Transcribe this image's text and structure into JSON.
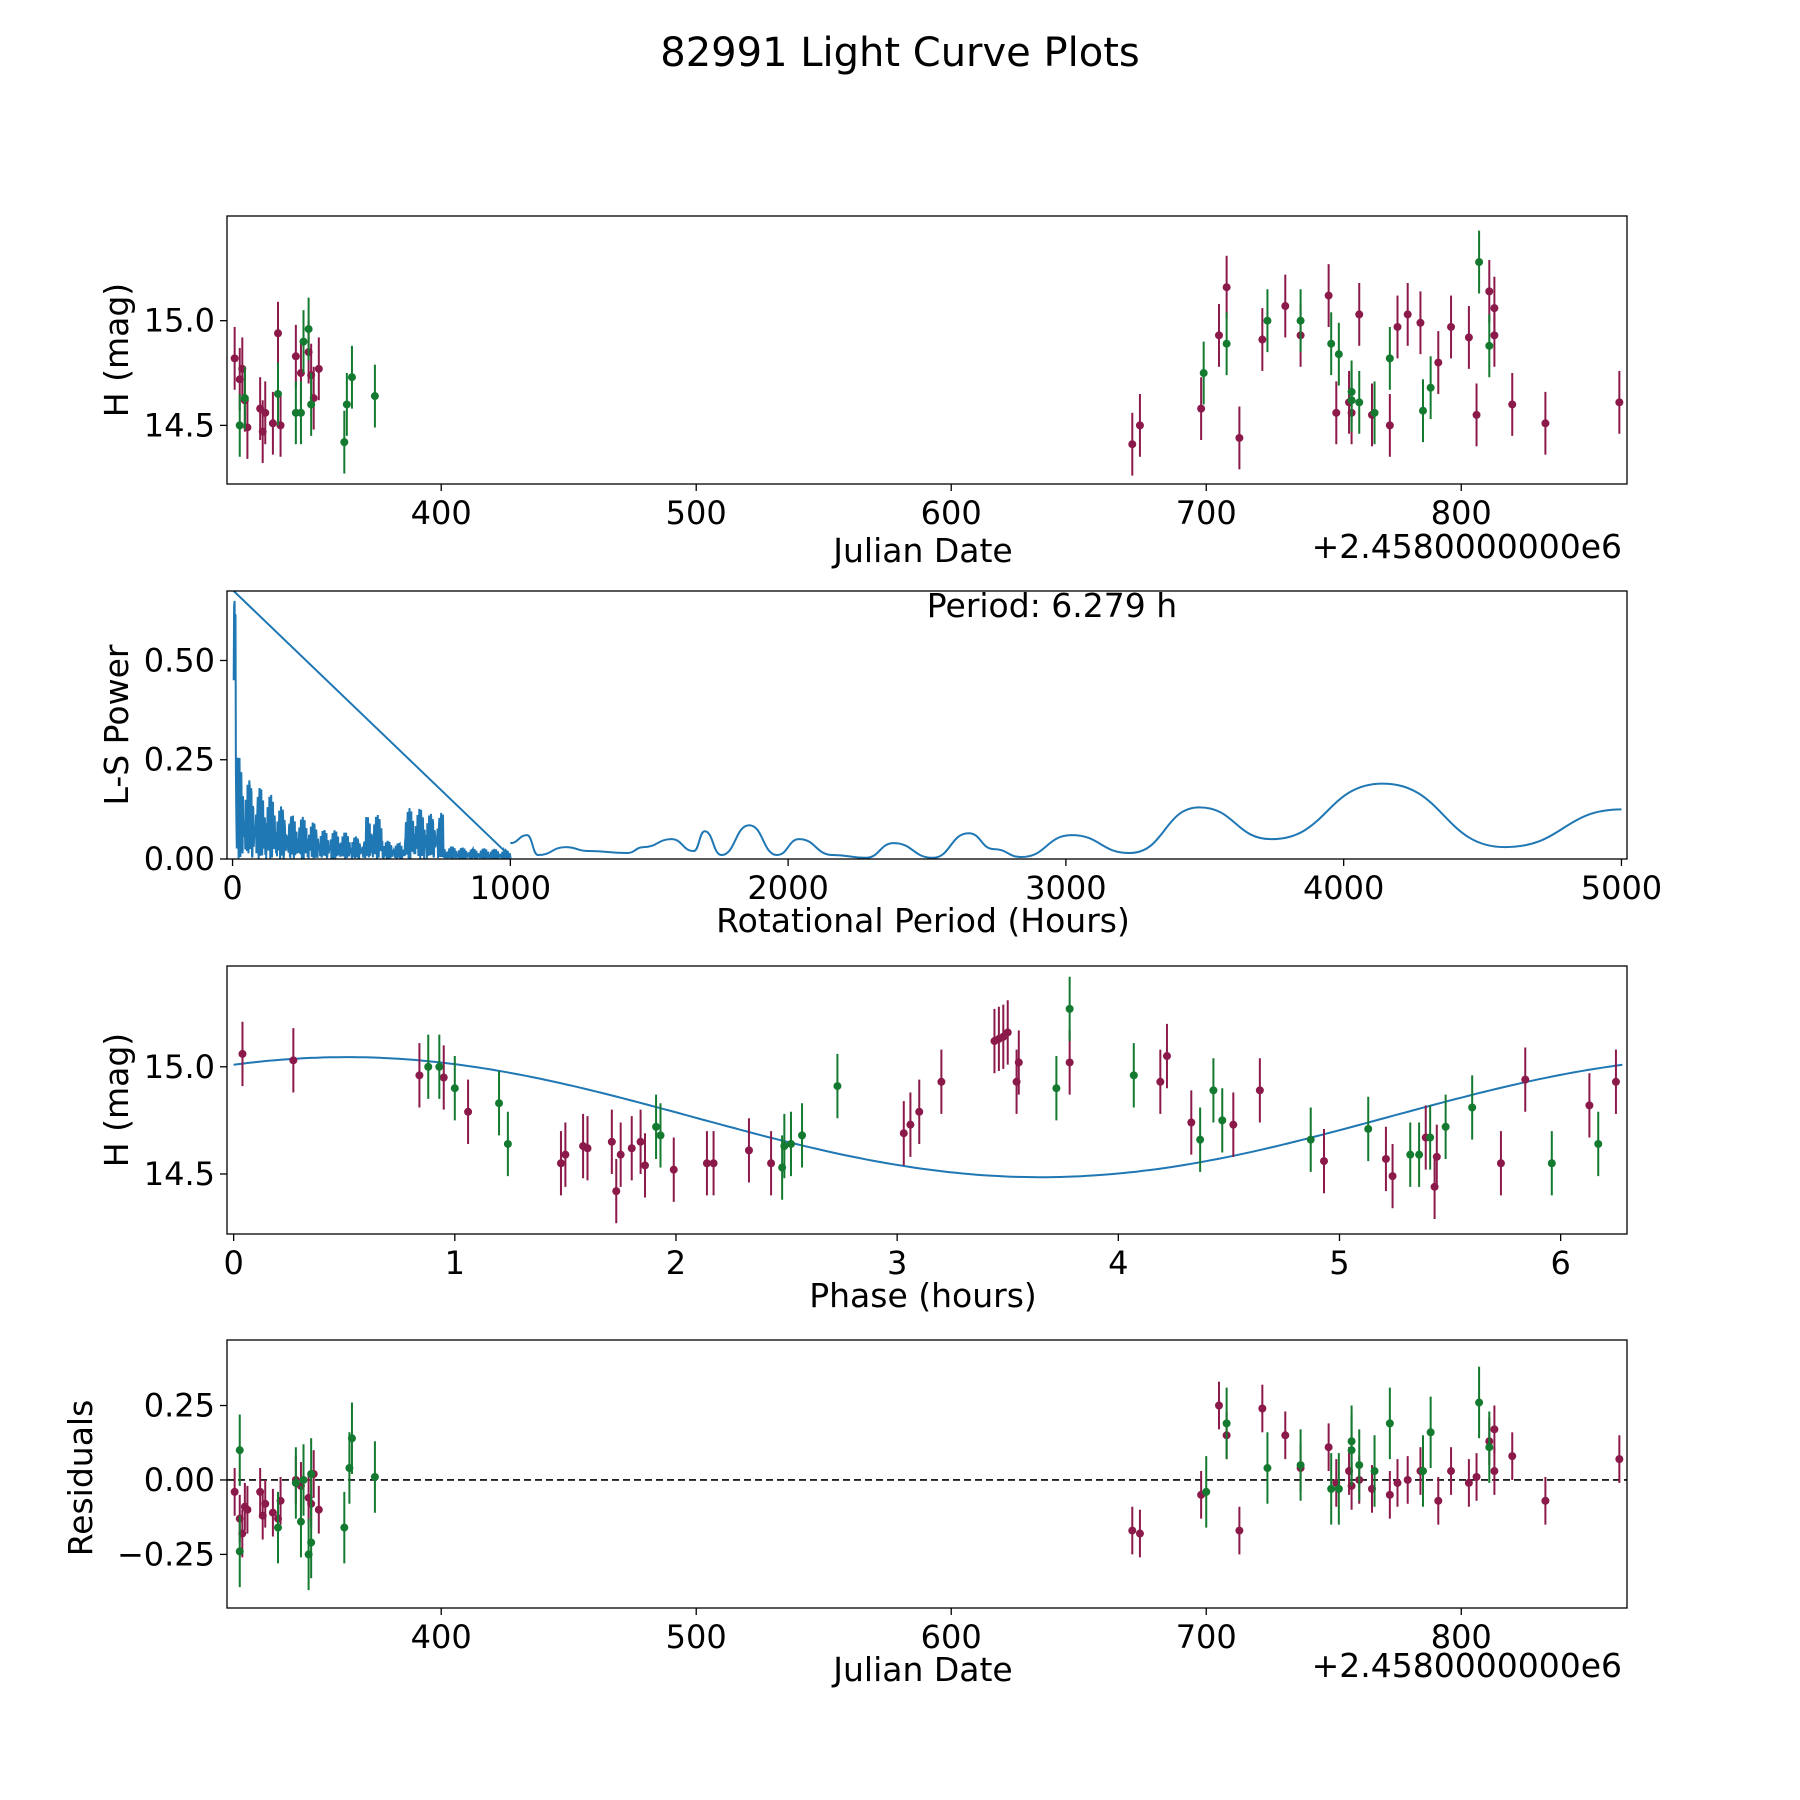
{
  "title": "82991 Light Curve Plots",
  "colors": {
    "red_filter": "#8b1a4b",
    "green_filter": "#137a2f",
    "curve": "#1f77b4",
    "zero_line": "#000000"
  },
  "chart_data": [
    {
      "id": "light_curve",
      "type": "scatter",
      "title": "",
      "xlabel": "Julian Date",
      "ylabel": "H (mag)",
      "x_offset_label": "+2.4580000000e6",
      "xlim": [
        316,
        865
      ],
      "ylim": [
        14.22,
        15.5
      ],
      "y_inverted": false,
      "xticks": [
        400,
        500,
        600,
        700,
        800
      ],
      "xtick_labels": [
        "400",
        "500",
        "600",
        "700",
        "800"
      ],
      "yticks": [
        14.5,
        15.0
      ],
      "ytick_labels": [
        "14.5",
        "15.0"
      ],
      "series": [
        {
          "name": "magenta",
          "color": "#8b1a4b",
          "error": 0.15,
          "points": [
            [
              319,
              14.82
            ],
            [
              321,
              14.72
            ],
            [
              322,
              14.77
            ],
            [
              323,
              14.62
            ],
            [
              324,
              14.49
            ],
            [
              329,
              14.58
            ],
            [
              330,
              14.47
            ],
            [
              331,
              14.56
            ],
            [
              334,
              14.51
            ],
            [
              336,
              14.94
            ],
            [
              337,
              14.5
            ],
            [
              343,
              14.83
            ],
            [
              345,
              14.75
            ],
            [
              348,
              14.85
            ],
            [
              349,
              14.74
            ],
            [
              350,
              14.63
            ],
            [
              352,
              14.77
            ],
            [
              671,
              14.41
            ],
            [
              674,
              14.5
            ],
            [
              698,
              14.58
            ],
            [
              705,
              14.93
            ],
            [
              708,
              15.16
            ],
            [
              713,
              14.44
            ],
            [
              722,
              14.91
            ],
            [
              731,
              15.07
            ],
            [
              737,
              14.93
            ],
            [
              748,
              15.12
            ],
            [
              751,
              14.56
            ],
            [
              756,
              14.61
            ],
            [
              757,
              14.56
            ],
            [
              760,
              15.03
            ],
            [
              765,
              14.55
            ],
            [
              772,
              14.5
            ],
            [
              775,
              14.97
            ],
            [
              779,
              15.03
            ],
            [
              784,
              14.99
            ],
            [
              791,
              14.8
            ],
            [
              796,
              14.97
            ],
            [
              803,
              14.92
            ],
            [
              806,
              14.55
            ],
            [
              811,
              15.14
            ],
            [
              813,
              15.06
            ],
            [
              813,
              14.93
            ],
            [
              820,
              14.6
            ],
            [
              833,
              14.51
            ],
            [
              862,
              14.61
            ]
          ]
        },
        {
          "name": "green",
          "color": "#137a2f",
          "error": 0.15,
          "points": [
            [
              321,
              14.5
            ],
            [
              323,
              14.63
            ],
            [
              336,
              14.65
            ],
            [
              343,
              14.56
            ],
            [
              345,
              14.56
            ],
            [
              346,
              14.9
            ],
            [
              348,
              14.96
            ],
            [
              349,
              14.6
            ],
            [
              362,
              14.42
            ],
            [
              363,
              14.6
            ],
            [
              365,
              14.73
            ],
            [
              374,
              14.64
            ],
            [
              699,
              14.75
            ],
            [
              708,
              14.89
            ],
            [
              724,
              15.0
            ],
            [
              737,
              15.0
            ],
            [
              749,
              14.89
            ],
            [
              752,
              14.84
            ],
            [
              757,
              14.66
            ],
            [
              757,
              14.62
            ],
            [
              760,
              14.61
            ],
            [
              766,
              14.56
            ],
            [
              772,
              14.82
            ],
            [
              785,
              14.57
            ],
            [
              788,
              14.68
            ],
            [
              807,
              15.28
            ],
            [
              811,
              14.88
            ]
          ]
        }
      ]
    },
    {
      "id": "periodogram",
      "type": "line",
      "title": "",
      "xlabel": "Rotational Period (Hours)",
      "ylabel": "L-S Power",
      "annotation": "Period: 6.279 h",
      "xlim": [
        -20,
        5020
      ],
      "ylim": [
        0,
        0.675
      ],
      "xticks": [
        0,
        1000,
        2000,
        3000,
        4000,
        5000
      ],
      "xtick_labels": [
        "0",
        "1000",
        "2000",
        "3000",
        "4000",
        "5000"
      ],
      "yticks": [
        0.0,
        0.25,
        0.5
      ],
      "ytick_labels": [
        "0.00",
        "0.25",
        "0.50"
      ],
      "series": [
        {
          "name": "L-S power",
          "color": "#1f77b4",
          "x": [
            1000,
            1060,
            1100,
            1200,
            1280,
            1420,
            1480,
            1580,
            1660,
            1700,
            1760,
            1860,
            1960,
            2040,
            2160,
            2280,
            2380,
            2520,
            2650,
            2740,
            2840,
            3020,
            3230,
            3480,
            3740,
            4140,
            4580,
            5000
          ],
          "y": [
            0.04,
            0.06,
            0.01,
            0.03,
            0.02,
            0.015,
            0.03,
            0.05,
            0.02,
            0.07,
            0.01,
            0.085,
            0.01,
            0.05,
            0.01,
            0.003,
            0.04,
            0.003,
            0.065,
            0.025,
            0.005,
            0.06,
            0.015,
            0.13,
            0.05,
            0.19,
            0.03,
            0.125
          ]
        }
      ]
    },
    {
      "id": "phased",
      "type": "scatter",
      "title": "",
      "xlabel": "Phase (hours)",
      "ylabel": "H (mag)",
      "xlim": [
        -0.03,
        6.3
      ],
      "ylim": [
        14.22,
        15.47
      ],
      "xticks": [
        0,
        1,
        2,
        3,
        4,
        5,
        6
      ],
      "xtick_labels": [
        "0",
        "1",
        "2",
        "3",
        "4",
        "5",
        "6"
      ],
      "yticks": [
        14.5,
        15.0
      ],
      "ytick_labels": [
        "14.5",
        "15.0"
      ],
      "fit": {
        "type": "sine",
        "mean": 14.765,
        "amplitude": 0.28,
        "period_hours": 6.279,
        "peak_phase": 0.51,
        "color": "#1f77b4"
      },
      "series": [
        {
          "name": "magenta",
          "color": "#8b1a4b",
          "error": 0.15,
          "points": [
            [
              0.04,
              15.06
            ],
            [
              0.27,
              15.03
            ],
            [
              0.84,
              14.96
            ],
            [
              0.95,
              14.95
            ],
            [
              1.06,
              14.79
            ],
            [
              1.48,
              14.55
            ],
            [
              1.5,
              14.59
            ],
            [
              1.58,
              14.63
            ],
            [
              1.6,
              14.62
            ],
            [
              1.71,
              14.65
            ],
            [
              1.73,
              14.42
            ],
            [
              1.75,
              14.59
            ],
            [
              1.8,
              14.62
            ],
            [
              1.84,
              14.65
            ],
            [
              1.86,
              14.54
            ],
            [
              1.99,
              14.52
            ],
            [
              2.14,
              14.55
            ],
            [
              2.17,
              14.55
            ],
            [
              2.33,
              14.61
            ],
            [
              2.43,
              14.55
            ],
            [
              3.03,
              14.69
            ],
            [
              3.06,
              14.73
            ],
            [
              3.1,
              14.79
            ],
            [
              3.2,
              14.93
            ],
            [
              3.44,
              15.12
            ],
            [
              3.46,
              15.13
            ],
            [
              3.48,
              15.14
            ],
            [
              3.5,
              15.16
            ],
            [
              3.54,
              14.93
            ],
            [
              3.55,
              15.02
            ],
            [
              3.78,
              15.02
            ],
            [
              4.19,
              14.93
            ],
            [
              4.22,
              15.05
            ],
            [
              4.33,
              14.74
            ],
            [
              4.52,
              14.73
            ],
            [
              4.64,
              14.89
            ],
            [
              4.93,
              14.56
            ],
            [
              5.21,
              14.57
            ],
            [
              5.24,
              14.49
            ],
            [
              5.39,
              14.67
            ],
            [
              5.43,
              14.44
            ],
            [
              5.44,
              14.58
            ],
            [
              5.73,
              14.55
            ],
            [
              5.84,
              14.94
            ],
            [
              6.13,
              14.82
            ],
            [
              6.25,
              14.93
            ]
          ]
        },
        {
          "name": "green",
          "color": "#137a2f",
          "error": 0.15,
          "points": [
            [
              0.88,
              15.0
            ],
            [
              0.93,
              15.0
            ],
            [
              1.0,
              14.9
            ],
            [
              1.2,
              14.83
            ],
            [
              1.24,
              14.64
            ],
            [
              1.91,
              14.72
            ],
            [
              1.93,
              14.68
            ],
            [
              2.48,
              14.53
            ],
            [
              2.49,
              14.63
            ],
            [
              2.52,
              14.64
            ],
            [
              2.57,
              14.68
            ],
            [
              2.73,
              14.91
            ],
            [
              3.72,
              14.9
            ],
            [
              3.78,
              15.27
            ],
            [
              4.07,
              14.96
            ],
            [
              4.37,
              14.66
            ],
            [
              4.43,
              14.89
            ],
            [
              4.47,
              14.75
            ],
            [
              4.87,
              14.66
            ],
            [
              5.13,
              14.71
            ],
            [
              5.32,
              14.59
            ],
            [
              5.36,
              14.59
            ],
            [
              5.41,
              14.67
            ],
            [
              5.48,
              14.72
            ],
            [
              5.6,
              14.81
            ],
            [
              5.96,
              14.55
            ],
            [
              6.17,
              14.64
            ]
          ]
        }
      ]
    },
    {
      "id": "residuals",
      "type": "scatter",
      "title": "",
      "xlabel": "Julian Date",
      "ylabel": "Residuals",
      "x_offset_label": "+2.4580000000e6",
      "xlim": [
        316,
        865
      ],
      "ylim": [
        -0.43,
        0.47
      ],
      "xticks": [
        400,
        500,
        600,
        700,
        800
      ],
      "xtick_labels": [
        "400",
        "500",
        "600",
        "700",
        "800"
      ],
      "yticks": [
        -0.25,
        0.0,
        0.25
      ],
      "ytick_labels": [
        "−0.25",
        "0.00",
        "0.25"
      ],
      "zero_line": true,
      "series": [
        {
          "name": "magenta",
          "color": "#8b1a4b",
          "error": 0.08,
          "points": [
            [
              319,
              -0.04
            ],
            [
              321,
              -0.13
            ],
            [
              322,
              -0.18
            ],
            [
              323,
              -0.09
            ],
            [
              324,
              -0.1
            ],
            [
              329,
              -0.04
            ],
            [
              330,
              -0.12
            ],
            [
              331,
              -0.08
            ],
            [
              334,
              -0.11
            ],
            [
              336,
              -0.13
            ],
            [
              337,
              -0.07
            ],
            [
              343,
              0.0
            ],
            [
              345,
              -0.02
            ],
            [
              348,
              -0.06
            ],
            [
              349,
              -0.08
            ],
            [
              350,
              0.02
            ],
            [
              352,
              -0.1
            ],
            [
              671,
              -0.17
            ],
            [
              674,
              -0.18
            ],
            [
              698,
              -0.05
            ],
            [
              705,
              0.25
            ],
            [
              708,
              0.15
            ],
            [
              713,
              -0.17
            ],
            [
              722,
              0.24
            ],
            [
              731,
              0.15
            ],
            [
              737,
              0.04
            ],
            [
              748,
              0.11
            ],
            [
              751,
              -0.01
            ],
            [
              756,
              0.03
            ],
            [
              757,
              -0.02
            ],
            [
              760,
              0.0
            ],
            [
              765,
              -0.03
            ],
            [
              772,
              -0.05
            ],
            [
              775,
              -0.01
            ],
            [
              779,
              0.0
            ],
            [
              784,
              0.03
            ],
            [
              791,
              -0.07
            ],
            [
              796,
              0.03
            ],
            [
              803,
              -0.01
            ],
            [
              806,
              0.01
            ],
            [
              811,
              0.13
            ],
            [
              813,
              0.17
            ],
            [
              813,
              0.03
            ],
            [
              820,
              0.08
            ],
            [
              833,
              -0.07
            ],
            [
              862,
              0.07
            ]
          ]
        },
        {
          "name": "green",
          "color": "#137a2f",
          "error": 0.12,
          "points": [
            [
              321,
              0.1
            ],
            [
              321,
              -0.24
            ],
            [
              336,
              -0.16
            ],
            [
              343,
              -0.01
            ],
            [
              345,
              -0.14
            ],
            [
              346,
              0.0
            ],
            [
              348,
              -0.25
            ],
            [
              349,
              0.02
            ],
            [
              349,
              -0.21
            ],
            [
              362,
              -0.16
            ],
            [
              364,
              0.04
            ],
            [
              365,
              0.14
            ],
            [
              374,
              0.01
            ],
            [
              700,
              -0.04
            ],
            [
              708,
              0.19
            ],
            [
              724,
              0.04
            ],
            [
              737,
              0.05
            ],
            [
              749,
              -0.03
            ],
            [
              752,
              -0.03
            ],
            [
              757,
              0.13
            ],
            [
              757,
              0.1
            ],
            [
              760,
              0.05
            ],
            [
              766,
              0.03
            ],
            [
              772,
              0.19
            ],
            [
              785,
              0.03
            ],
            [
              788,
              0.16
            ],
            [
              807,
              0.26
            ],
            [
              811,
              0.11
            ]
          ]
        }
      ]
    }
  ]
}
